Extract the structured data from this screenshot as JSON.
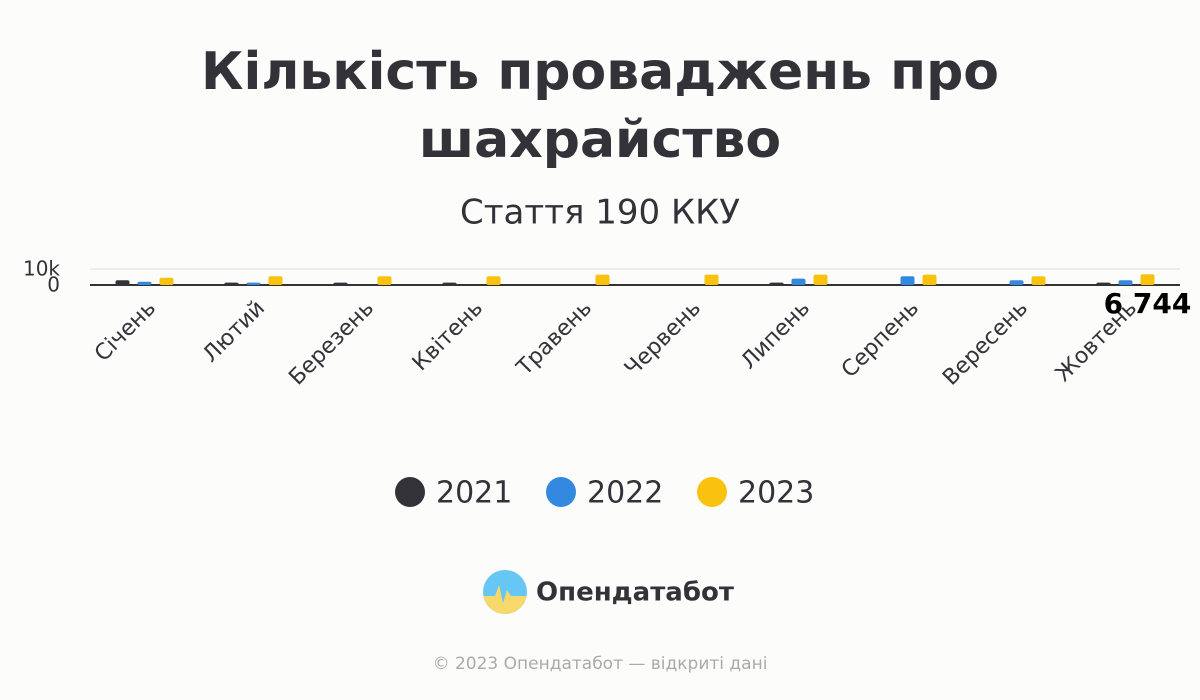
{
  "chart_data": {
    "type": "bar",
    "title": "Кількість проваджень про шахрайство",
    "subtitle": "Стаття 190 ККУ",
    "categories": [
      "Січень",
      "Лютий",
      "Березень",
      "Квітень",
      "Травень",
      "Червень",
      "Липень",
      "Серпень",
      "Вересень",
      "Жовтень"
    ],
    "series": [
      {
        "name": "2021",
        "color": "#333238",
        "values": [
          3000,
          1500,
          1500,
          1500,
          null,
          null,
          1500,
          null,
          null,
          1500
        ]
      },
      {
        "name": "2022",
        "color": "#3389e0",
        "values": [
          2000,
          1500,
          null,
          null,
          null,
          null,
          4000,
          5500,
          3000,
          3000
        ]
      },
      {
        "name": "2023",
        "color": "#f9c20f",
        "values": [
          4500,
          5500,
          5500,
          5500,
          6500,
          6500,
          6500,
          6500,
          5500,
          6744
        ],
        "value_labels": [
          null,
          null,
          null,
          null,
          null,
          null,
          null,
          null,
          null,
          "6 744"
        ]
      }
    ],
    "ylim": [
      0,
      10000
    ],
    "yticks": [
      0,
      {
        "value": 10000,
        "label": "10k"
      }
    ],
    "grid": true
  },
  "brand": "Опендатабот",
  "footer": "© 2023 Опендатабот — відкриті дані"
}
